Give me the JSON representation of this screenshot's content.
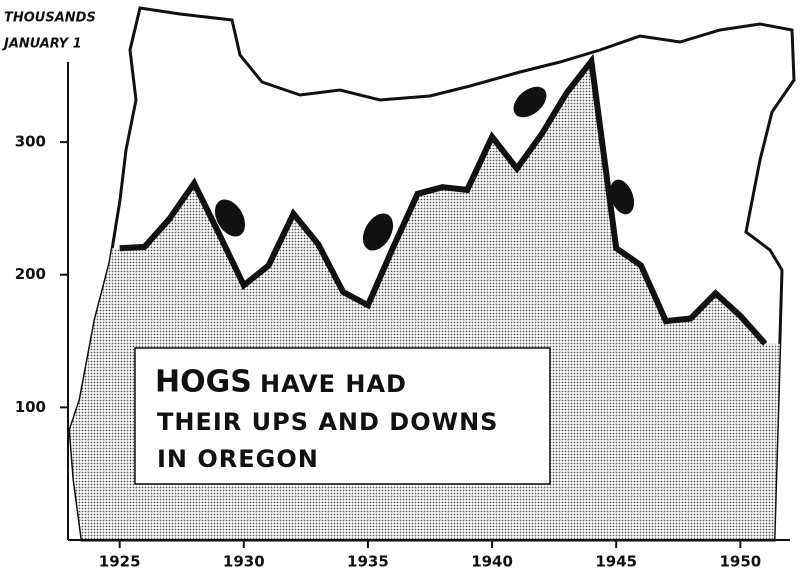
{
  "chart_data": {
    "type": "area",
    "title": "HOGS",
    "subtitle_lines": [
      "HAVE HAD",
      "THEIR UPS AND DOWNS",
      "IN OREGON"
    ],
    "y_label_lines": [
      "THOUSANDS",
      "JANUARY 1"
    ],
    "x": [
      1925,
      1926,
      1927,
      1928,
      1929,
      1930,
      1931,
      1932,
      1933,
      1934,
      1935,
      1936,
      1937,
      1938,
      1939,
      1940,
      1941,
      1942,
      1943,
      1944,
      1945,
      1946,
      1947,
      1948,
      1949,
      1950,
      1951
    ],
    "values": [
      220,
      221,
      242,
      269,
      231,
      192,
      207,
      246,
      223,
      187,
      177,
      220,
      261,
      266,
      264,
      304,
      280,
      306,
      337,
      361,
      220,
      207,
      165,
      167,
      186,
      169,
      148
    ],
    "color": "#111111",
    "xlim": [
      1923,
      1952
    ],
    "xticks": [
      1925,
      1930,
      1935,
      1940,
      1945,
      1950
    ],
    "ylim": [
      0,
      380
    ],
    "yticks": [
      100,
      200,
      300
    ]
  }
}
